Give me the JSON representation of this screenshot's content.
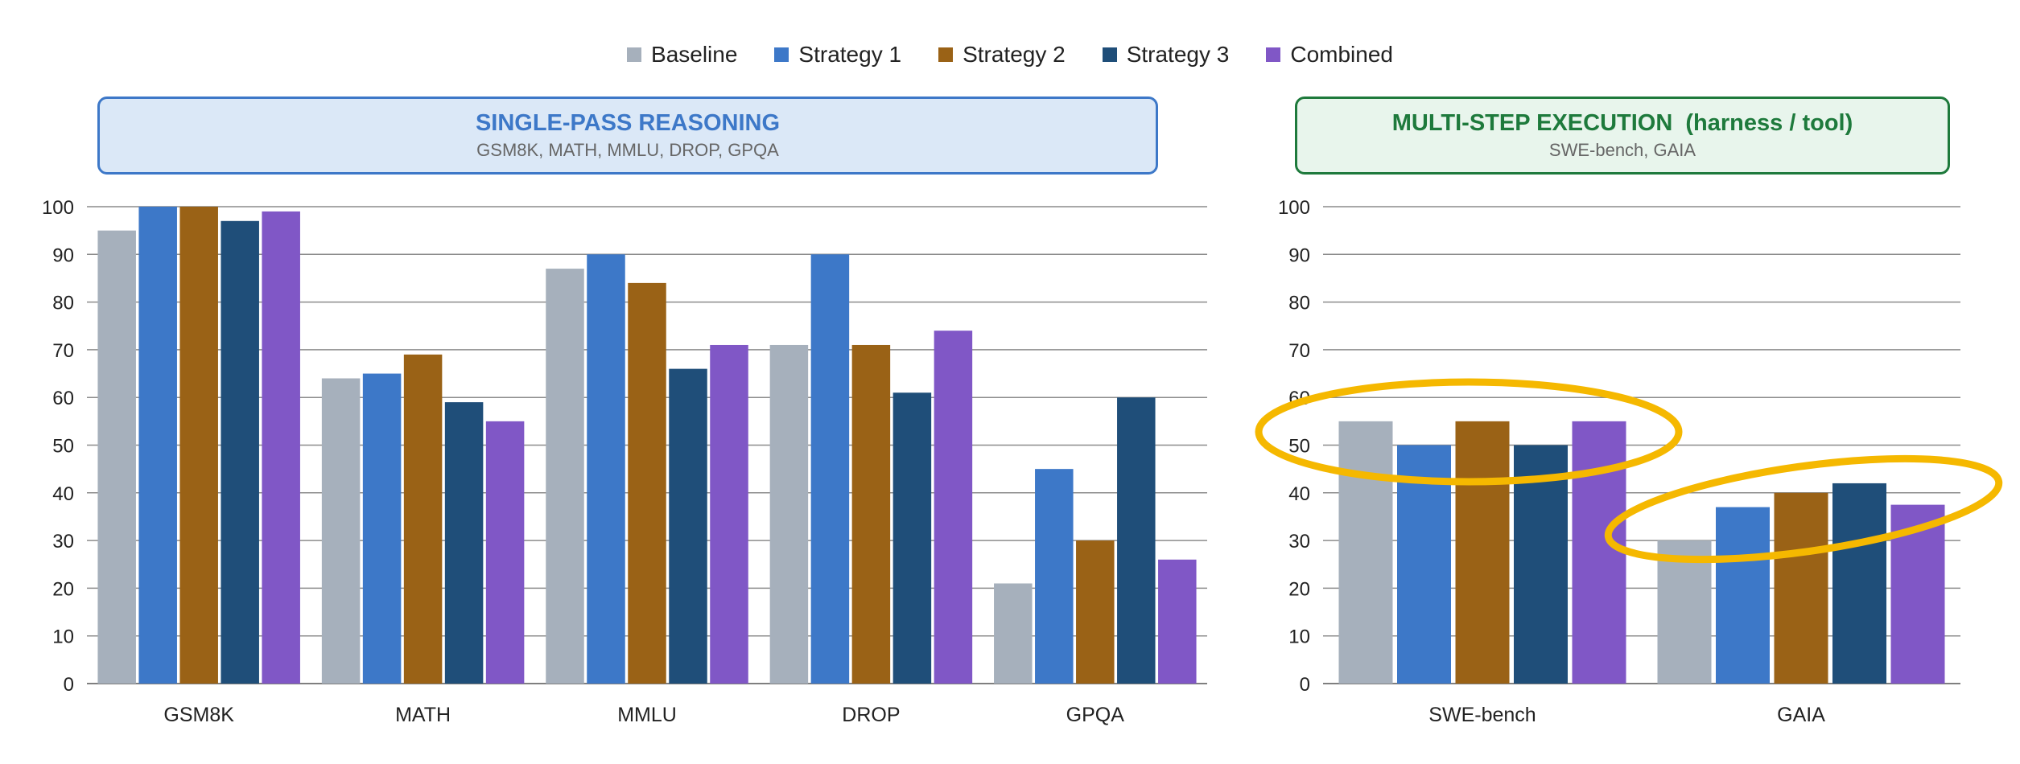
{
  "legend": [
    {
      "label": "Baseline",
      "color": "#a6b0bc"
    },
    {
      "label": "Strategy 1",
      "color": "#3d78c8"
    },
    {
      "label": "Strategy 2",
      "color": "#9a6216"
    },
    {
      "label": "Strategy 3",
      "color": "#1f4e79"
    },
    {
      "label": "Combined",
      "color": "#8057c6"
    }
  ],
  "panels": {
    "left": {
      "title": "SINGLE-PASS REASONING",
      "subtitle": "GSM8K, MATH, MMLU, DROP, GPQA",
      "title_color": "#3d78c8",
      "border_color": "#3d78c8",
      "fill_color": "#dbe8f7"
    },
    "right": {
      "title": "MULTI-STEP EXECUTION  (harness / tool)",
      "subtitle": "SWE-bench, GAIA",
      "title_color": "#1e7a3c",
      "border_color": "#1e7a3c",
      "fill_color": "#e8f5ec"
    }
  },
  "highlight_color": "#f5b800",
  "chart_data": [
    {
      "type": "bar",
      "categories": [
        "GSM8K",
        "MATH",
        "MMLU",
        "DROP",
        "GPQA"
      ],
      "series": [
        {
          "name": "Baseline",
          "values": [
            95,
            64,
            87,
            71,
            21
          ]
        },
        {
          "name": "Strategy 1",
          "values": [
            100,
            65,
            90,
            90,
            45
          ]
        },
        {
          "name": "Strategy 2",
          "values": [
            100,
            69,
            84,
            71,
            30
          ]
        },
        {
          "name": "Strategy 3",
          "values": [
            97,
            59,
            66,
            61,
            60
          ]
        },
        {
          "name": "Combined",
          "values": [
            99,
            55,
            71,
            74,
            26
          ]
        }
      ],
      "ylim": [
        0,
        100
      ],
      "yticks": [
        0,
        10,
        20,
        30,
        40,
        50,
        60,
        70,
        80,
        90,
        100
      ],
      "grid": true,
      "legend": "top-center"
    },
    {
      "type": "bar",
      "categories": [
        "SWE-bench",
        "GAIA"
      ],
      "series": [
        {
          "name": "Baseline",
          "values": [
            55,
            30
          ]
        },
        {
          "name": "Strategy 1",
          "values": [
            50,
            37
          ]
        },
        {
          "name": "Strategy 2",
          "values": [
            55,
            40
          ]
        },
        {
          "name": "Strategy 3",
          "values": [
            50,
            42
          ]
        },
        {
          "name": "Combined",
          "values": [
            55,
            37.5
          ]
        }
      ],
      "ylim": [
        0,
        100
      ],
      "yticks": [
        0,
        10,
        20,
        30,
        40,
        50,
        60,
        70,
        80,
        90,
        100
      ],
      "grid": true,
      "legend": "top-center"
    }
  ]
}
